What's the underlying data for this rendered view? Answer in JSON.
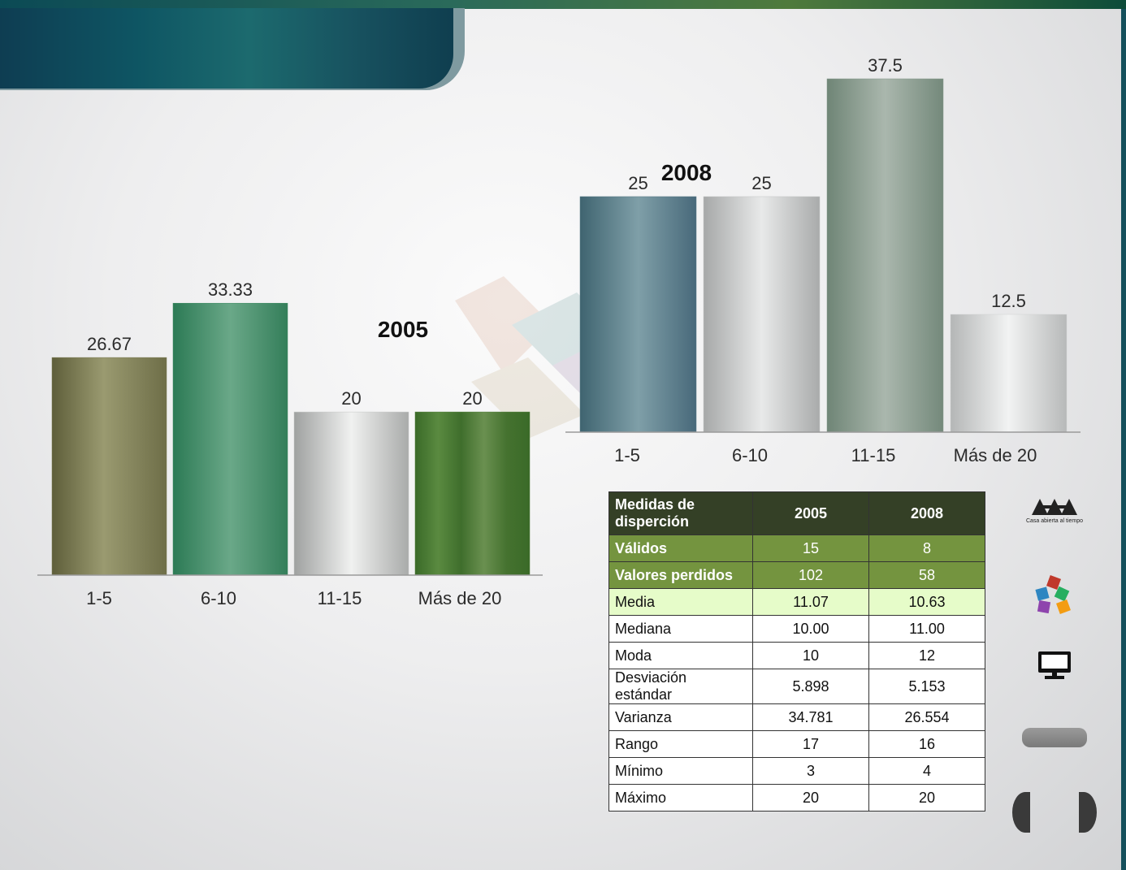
{
  "chart_data": [
    {
      "type": "bar",
      "title": "2005",
      "categories": [
        "1-5",
        "6-10",
        "11-15",
        "Más de 20"
      ],
      "values": [
        26.67,
        33.33,
        20,
        20
      ],
      "value_labels": [
        "26.67",
        "33.33",
        "20",
        "20"
      ],
      "colors": [
        "#7a7a52",
        "#3e8a63",
        "#c6c8c6",
        "#4d7a35"
      ],
      "ylim": [
        0,
        45
      ]
    },
    {
      "type": "bar",
      "title": "2008",
      "categories": [
        "1-5",
        "6-10",
        "11-15",
        "Más de 20"
      ],
      "values": [
        25,
        25,
        37.5,
        12.5
      ],
      "value_labels": [
        "25",
        "25",
        "37.5",
        "12.5"
      ],
      "colors": [
        "#5b7d88",
        "#c4c6c6",
        "#86998c",
        "#cfd1d1"
      ],
      "ylim": [
        0,
        45
      ]
    }
  ],
  "table": {
    "header": [
      "Medidas de disperción",
      "2005",
      "2008"
    ],
    "rows": [
      {
        "label": "Válidos",
        "v2005": "15",
        "v2008": "8",
        "style": "valid"
      },
      {
        "label": "Valores perdidos",
        "v2005": "102",
        "v2008": "58",
        "style": "valid"
      },
      {
        "label": "Media",
        "v2005": "11.07",
        "v2008": "10.63",
        "style": "media"
      },
      {
        "label": "Mediana",
        "v2005": "10.00",
        "v2008": "11.00",
        "style": "plain"
      },
      {
        "label": "Moda",
        "v2005": "10",
        "v2008": "12",
        "style": "plain"
      },
      {
        "label": "Desviación estándar",
        "v2005": "5.898",
        "v2008": "5.153",
        "style": "plain"
      },
      {
        "label": "Varianza",
        "v2005": "34.781",
        "v2008": "26.554",
        "style": "plain"
      },
      {
        "label": "Rango",
        "v2005": "17",
        "v2008": "16",
        "style": "plain"
      },
      {
        "label": "Mínimo",
        "v2005": "3",
        "v2008": "4",
        "style": "plain"
      },
      {
        "label": "Máximo",
        "v2005": "20",
        "v2008": "20",
        "style": "plain"
      }
    ]
  },
  "logo": {
    "name": "uam-logo-icon",
    "tagline": "Casa abierta al tiempo"
  },
  "side_icons": [
    "blocks-icon",
    "computer-monitor-icon",
    "grey-pill-button",
    "prev-arrow-icon",
    "next-arrow-icon"
  ]
}
